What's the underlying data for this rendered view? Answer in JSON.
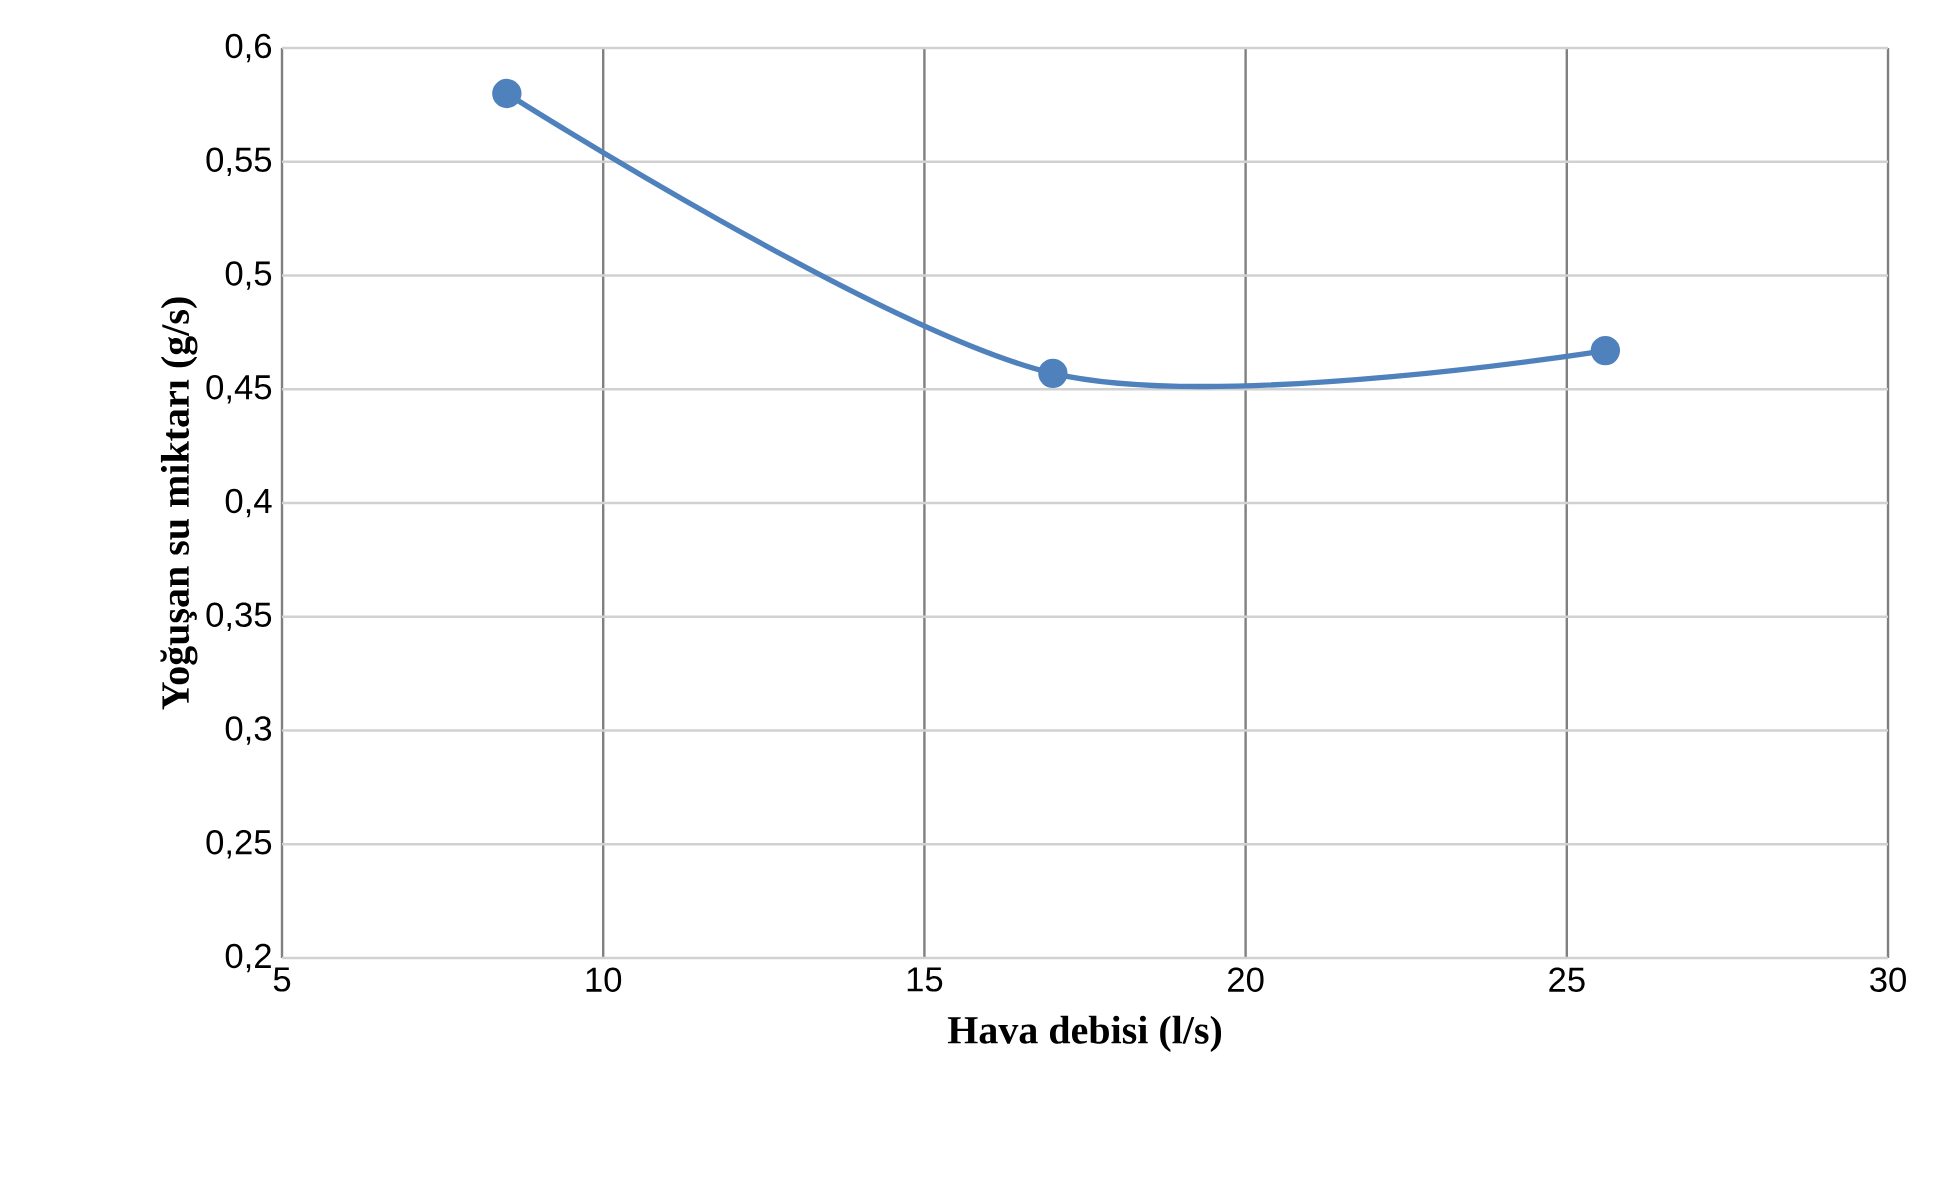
{
  "chart_data": {
    "type": "line",
    "xlabel": "Hava debisi (l/s)",
    "ylabel": "Yoğuşan su miktarı (g/s)",
    "x": [
      8.5,
      17,
      25.6
    ],
    "series": [
      {
        "color": "#4f81bd",
        "values": [
          0.58,
          0.457,
          0.467
        ]
      }
    ],
    "xlim": [
      5,
      30
    ],
    "xticks": [
      5,
      10,
      15,
      20,
      25,
      30
    ],
    "ylim": [
      0.2,
      0.6
    ],
    "yticks": [
      {
        "value": 0.2,
        "label": "0,2"
      },
      {
        "value": 0.25,
        "label": "0,25"
      },
      {
        "value": 0.3,
        "label": "0,3"
      },
      {
        "value": 0.35,
        "label": "0,35"
      },
      {
        "value": 0.4,
        "label": "0,4"
      },
      {
        "value": 0.45,
        "label": "0,45"
      },
      {
        "value": 0.5,
        "label": "0,5"
      },
      {
        "value": 0.55,
        "label": "0,55"
      },
      {
        "value": 0.6,
        "label": "0,6"
      }
    ],
    "grid": true,
    "marker": "circle",
    "line_style": "solid"
  }
}
